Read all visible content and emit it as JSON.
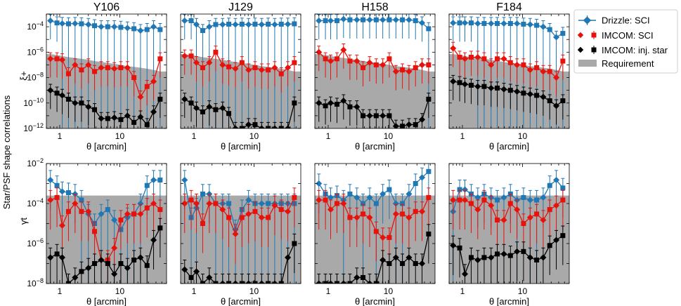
{
  "figure": {
    "ylabel": "Star/PSF shape correlations",
    "row_labels": [
      "ξ+",
      "γt"
    ],
    "xlabel": "θ [arcmin]",
    "colors": {
      "drizzle": "#1f77b4",
      "imcom_sci": "#e8120c",
      "inj_star": "#000000",
      "requirement": "#a9a9a9"
    }
  },
  "legend": {
    "items": [
      {
        "label": "Drizzle: SCI",
        "series": "drizzle"
      },
      {
        "label": "IMCOM: SCI",
        "series": "imcom_sci"
      },
      {
        "label": "IMCOM: inj. star",
        "series": "inj_star"
      },
      {
        "label": "Requirement",
        "series": "requirement"
      }
    ]
  },
  "chart_data": [
    {
      "type": "line",
      "row": "xi_plus",
      "title": "Y106",
      "xlabel": "θ [arcmin]",
      "ylabel": "ξ+",
      "xscale": "log",
      "yscale": "log",
      "xlim": [
        0.6,
        60
      ],
      "ylim": [
        1e-12,
        0.001
      ],
      "x": [
        0.7,
        0.9,
        1.1,
        1.4,
        1.8,
        2.3,
        3.0,
        3.8,
        4.9,
        6.3,
        8.1,
        10.4,
        13.4,
        17.2,
        22.1,
        28.4,
        36.5,
        46.9
      ],
      "xticks": [
        "1",
        "10"
      ],
      "yticks": [
        "10^-12",
        "10^-10",
        "10^-8",
        "10^-6",
        "10^-4"
      ],
      "requirement": [
        7e-07,
        6e-07,
        5e-07,
        4e-07,
        3.5e-07,
        3e-07,
        2.5e-07,
        2e-07,
        1.7e-07,
        1.4e-07,
        1.2e-07,
        1e-07,
        8e-08,
        7e-08,
        6e-08,
        5e-08,
        4e-08,
        3e-08
      ],
      "series": [
        {
          "name": "Drizzle: SCI",
          "key": "drizzle",
          "values": [
            0.0003,
            0.0002,
            0.00018,
            0.00017,
            0.00018,
            0.00017,
            0.00015,
            0.00012,
            0.0001,
            0.0001,
            0.0001,
            9e-05,
            8e-05,
            7e-05,
            5e-05,
            6e-05,
            0.0001,
            6e-05
          ]
        },
        {
          "name": "IMCOM: SCI",
          "key": "imcom_sci",
          "values": [
            3e-07,
            3e-07,
            2.5e-07,
            2e-08,
            1e-07,
            4e-08,
            1e-07,
            3e-08,
            6e-08,
            6e-08,
            5e-08,
            6e-08,
            6e-08,
            1e-08,
            3e-10,
            2e-09,
            5e-09,
            3e-07
          ]
        },
        {
          "name": "IMCOM: inj. star",
          "key": "inj_star",
          "values": [
            1e-09,
            6e-10,
            4e-10,
            2e-10,
            1e-10,
            1e-10,
            5e-11,
            3e-11,
            6e-12,
            6e-12,
            7e-12,
            5e-12,
            1e-11,
            3e-12,
            8e-12,
            2e-12,
            2e-11,
            2e-10
          ]
        }
      ]
    },
    {
      "type": "line",
      "row": "xi_plus",
      "title": "J129",
      "xlabel": "θ [arcmin]",
      "ylabel": "ξ+",
      "xscale": "log",
      "yscale": "log",
      "xlim": [
        0.6,
        60
      ],
      "ylim": [
        1e-12,
        0.001
      ],
      "x": [
        0.7,
        0.9,
        1.1,
        1.4,
        1.8,
        2.3,
        3.0,
        3.8,
        4.9,
        6.3,
        8.1,
        10.4,
        13.4,
        17.2,
        22.1,
        28.4,
        36.5,
        46.9
      ],
      "xticks": [
        "1",
        "10"
      ],
      "yticks": [],
      "requirement": [
        7e-07,
        6e-07,
        5e-07,
        4e-07,
        3.5e-07,
        3e-07,
        2.5e-07,
        2e-07,
        1.7e-07,
        1.4e-07,
        1.2e-07,
        1e-07,
        8e-08,
        7e-08,
        6e-08,
        5e-08,
        4e-08,
        3e-08
      ],
      "series": [
        {
          "name": "Drizzle: SCI",
          "key": "drizzle",
          "values": [
            0.0003,
            0.0003,
            0.00015,
            5e-05,
            0.0001,
            0.00015,
            0.00015,
            0.00016,
            0.00015,
            0.00016,
            0.00015,
            0.00016,
            0.00015,
            0.00016,
            0.00015,
            0.00016,
            0.00016,
            0.00017
          ]
        },
        {
          "name": "IMCOM: SCI",
          "key": "imcom_sci",
          "values": [
            5e-07,
            5e-07,
            1.5e-07,
            6e-08,
            1.5e-07,
            1e-06,
            1e-07,
            7e-08,
            5e-08,
            1.5e-07,
            4e-08,
            6e-08,
            4e-08,
            4e-08,
            6e-08,
            2e-08,
            6e-08,
            1.5e-07
          ]
        },
        {
          "name": "IMCOM: inj. star",
          "key": "inj_star",
          "values": [
            2e-10,
            1e-10,
            4e-11,
            2e-11,
            5e-11,
            3e-11,
            4e-11,
            1.5e-11,
            1e-12,
            1e-12,
            2e-12,
            2e-12,
            1e-12,
            1e-12,
            1e-12,
            1e-12,
            1e-12,
            1e-10
          ]
        }
      ]
    },
    {
      "type": "line",
      "row": "xi_plus",
      "title": "H158",
      "xlabel": "θ [arcmin]",
      "ylabel": "ξ+",
      "xscale": "log",
      "yscale": "log",
      "xlim": [
        0.6,
        60
      ],
      "ylim": [
        1e-12,
        0.001
      ],
      "x": [
        0.7,
        0.9,
        1.1,
        1.4,
        1.8,
        2.3,
        3.0,
        3.8,
        4.9,
        6.3,
        8.1,
        10.4,
        13.4,
        17.2,
        22.1,
        28.4,
        36.5,
        46.9
      ],
      "xticks": [
        "1",
        "10"
      ],
      "yticks": [],
      "requirement": [
        7e-07,
        6e-07,
        5e-07,
        4e-07,
        3.5e-07,
        3e-07,
        2.5e-07,
        2e-07,
        1.7e-07,
        1.4e-07,
        1.2e-07,
        1e-07,
        8e-08,
        7e-08,
        6e-08,
        5e-08,
        4e-08,
        3e-08
      ],
      "series": [
        {
          "name": "Drizzle: SCI",
          "key": "drizzle",
          "values": [
            0.0003,
            0.0003,
            0.0003,
            0.0003,
            0.0004,
            0.00035,
            0.00035,
            0.00035,
            0.00035,
            0.00035,
            0.00035,
            0.00035,
            0.00035,
            0.00035,
            0.00035,
            0.0003,
            0.0002,
            7e-05
          ]
        },
        {
          "name": "IMCOM: SCI",
          "key": "imcom_sci",
          "values": [
            1e-06,
            3e-07,
            2e-07,
            3e-07,
            1.5e-06,
            2e-07,
            2e-07,
            6e-08,
            1.5e-07,
            1e-07,
            1e-07,
            3e-07,
            3e-08,
            4e-08,
            3e-08,
            6e-08,
            1e-07,
            1e-07
          ]
        },
        {
          "name": "IMCOM: inj. star",
          "key": "inj_star",
          "values": [
            1e-10,
            6e-11,
            1e-10,
            8e-11,
            1.5e-10,
            5e-11,
            5e-11,
            1e-11,
            1e-11,
            1e-11,
            1e-11,
            1e-11,
            1.5e-12,
            1.5e-12,
            2e-12,
            2e-12,
            5e-12,
            2e-10
          ]
        }
      ]
    },
    {
      "type": "line",
      "row": "xi_plus",
      "title": "F184",
      "xlabel": "θ [arcmin]",
      "ylabel": "ξ+",
      "xscale": "log",
      "yscale": "log",
      "xlim": [
        0.6,
        60
      ],
      "ylim": [
        1e-12,
        0.001
      ],
      "x": [
        0.7,
        0.9,
        1.1,
        1.4,
        1.8,
        2.3,
        3.0,
        3.8,
        4.9,
        6.3,
        8.1,
        10.4,
        13.4,
        17.2,
        22.1,
        28.4,
        36.5,
        46.9
      ],
      "xticks": [
        "1",
        "10"
      ],
      "yticks": [],
      "requirement": [
        7e-07,
        6e-07,
        5e-07,
        4e-07,
        3.5e-07,
        3e-07,
        2.5e-07,
        2e-07,
        1.7e-07,
        1.4e-07,
        1.2e-07,
        1e-07,
        8e-08,
        7e-08,
        6e-08,
        5e-08,
        4e-08,
        3e-08
      ],
      "series": [
        {
          "name": "Drizzle: SCI",
          "key": "drizzle",
          "values": [
            0.0002,
            0.0002,
            0.0002,
            0.0002,
            0.00018,
            0.00018,
            0.00018,
            0.00018,
            0.00018,
            0.00018,
            0.00018,
            0.00016,
            0.00015,
            0.00013,
            0.0001,
            6e-05,
            1.5e-05,
            3e-05
          ]
        },
        {
          "name": "IMCOM: SCI",
          "key": "imcom_sci",
          "values": [
            2e-06,
            4e-07,
            3e-07,
            4e-07,
            4e-07,
            3e-07,
            1e-07,
            3e-07,
            3e-07,
            1.5e-07,
            1e-07,
            1e-07,
            4e-08,
            6e-08,
            3e-08,
            3e-08,
            1e-08,
            2e-07
          ]
        },
        {
          "name": "IMCOM: inj. star",
          "key": "inj_star",
          "values": [
            5e-09,
            4e-09,
            3e-09,
            2.5e-09,
            2e-09,
            2e-09,
            1.5e-09,
            1.5e-09,
            1.2e-09,
            1e-09,
            8e-10,
            6e-10,
            5e-10,
            4e-10,
            3e-10,
            1.5e-10,
            6e-11,
            1.5e-10
          ]
        }
      ]
    },
    {
      "type": "line",
      "row": "gamma_t",
      "title": "",
      "xlabel": "θ [arcmin]",
      "ylabel": "γt",
      "xscale": "log",
      "yscale": "log",
      "xlim": [
        0.6,
        60
      ],
      "ylim": [
        1e-08,
        0.01
      ],
      "x": [
        0.7,
        0.9,
        1.1,
        1.4,
        1.8,
        2.3,
        3.0,
        3.8,
        4.9,
        6.3,
        8.1,
        10.4,
        13.4,
        17.2,
        22.1,
        28.4,
        36.5,
        46.9
      ],
      "xticks": [
        "1",
        "10"
      ],
      "yticks": [
        "10^-8",
        "10^-6",
        "10^-4",
        "10^-2"
      ],
      "requirement": [
        0.00025,
        0.00025,
        0.00025,
        0.00025,
        0.00025,
        0.00025,
        0.00025,
        0.00025,
        0.00025,
        0.00025,
        0.00025,
        0.00025,
        0.00025,
        0.00025,
        0.00025,
        0.00025,
        0.00025,
        0.00025
      ],
      "series": [
        {
          "name": "Drizzle: SCI",
          "key": "drizzle",
          "values": [
            0.0015,
            0.0008,
            0.0004,
            0.00035,
            0.0003,
            0.00015,
            3e-05,
            1e-05,
            3e-05,
            5e-05,
            1.5e-05,
            5e-06,
            2e-05,
            3e-05,
            0.0001,
            0.0008,
            0.0015,
            0.0015
          ]
        },
        {
          "name": "IMCOM: SCI",
          "key": "imcom_sci",
          "values": [
            0.00015,
            0.0002,
            8e-06,
            4e-05,
            0.0001,
            4e-05,
            4e-05,
            4e-06,
            1.5e-07,
            1.5e-07,
            6e-07,
            1.5e-05,
            3e-05,
            3e-05,
            3e-05,
            6e-05,
            0.0001,
            5e-05
          ]
        },
        {
          "name": "IMCOM: inj. star",
          "key": "inj_star",
          "values": [
            2e-07,
            3e-07,
            2e-07,
            1e-08,
            2e-08,
            4e-08,
            6e-08,
            1e-07,
            1.5e-07,
            1e-07,
            3e-08,
            1e-07,
            6e-08,
            1.5e-07,
            2e-07,
            8e-08,
            1.5e-06,
            6e-06
          ]
        }
      ]
    },
    {
      "type": "line",
      "row": "gamma_t",
      "title": "",
      "xlabel": "θ [arcmin]",
      "ylabel": "γt",
      "xscale": "log",
      "yscale": "log",
      "xlim": [
        0.6,
        60
      ],
      "ylim": [
        1e-08,
        0.01
      ],
      "x": [
        0.7,
        0.9,
        1.1,
        1.4,
        1.8,
        2.3,
        3.0,
        3.8,
        4.9,
        6.3,
        8.1,
        10.4,
        13.4,
        17.2,
        22.1,
        28.4,
        36.5,
        46.9
      ],
      "xticks": [
        "1",
        "10"
      ],
      "yticks": [],
      "requirement": [
        0.00025,
        0.00025,
        0.00025,
        0.00025,
        0.00025,
        0.00025,
        0.00025,
        0.00025,
        0.00025,
        0.00025,
        0.00025,
        0.00025,
        0.00025,
        0.00025,
        0.00025,
        0.00025,
        0.00025,
        0.00025
      ],
      "series": [
        {
          "name": "Drizzle: SCI",
          "key": "drizzle",
          "values": [
            0.0015,
            2e-05,
            6e-05,
            0.0003,
            0.0003,
            0.0001,
            0.0001,
            0.0001,
            5e-06,
            5e-05,
            0.00015,
            0.0001,
            0.0001,
            0.0001,
            0.0001,
            0.0001,
            0.0001,
            0.0001
          ]
        },
        {
          "name": "IMCOM: SCI",
          "key": "imcom_sci",
          "values": [
            0.0001,
            0.00015,
            0.0001,
            1e-05,
            0.0001,
            0.0001,
            5e-05,
            2e-05,
            3e-06,
            2e-05,
            3e-05,
            4e-05,
            2e-05,
            2e-05,
            8e-05,
            5e-05,
            4e-05,
            0.0002
          ]
        },
        {
          "name": "IMCOM: inj. star",
          "key": "inj_star",
          "values": [
            5e-08,
            2e-08,
            4e-08,
            1e-08,
            2e-08,
            1e-08,
            1e-08,
            1e-08,
            1e-08,
            1e-08,
            1e-08,
            1e-08,
            1e-08,
            1e-08,
            1e-08,
            1e-08,
            2e-07,
            1e-06
          ]
        }
      ]
    },
    {
      "type": "line",
      "row": "gamma_t",
      "title": "",
      "xlabel": "θ [arcmin]",
      "ylabel": "γt",
      "xscale": "log",
      "yscale": "log",
      "xlim": [
        0.6,
        60
      ],
      "ylim": [
        1e-08,
        0.01
      ],
      "x": [
        0.7,
        0.9,
        1.1,
        1.4,
        1.8,
        2.3,
        3.0,
        3.8,
        4.9,
        6.3,
        8.1,
        10.4,
        13.4,
        17.2,
        22.1,
        28.4,
        36.5,
        46.9
      ],
      "xticks": [
        "1",
        "10"
      ],
      "yticks": [],
      "requirement": [
        0.00025,
        0.00025,
        0.00025,
        0.00025,
        0.00025,
        0.00025,
        0.00025,
        0.00025,
        0.00025,
        0.00025,
        0.00025,
        0.00025,
        0.00025,
        0.00025,
        0.00025,
        0.00025,
        0.00025,
        0.00025
      ],
      "series": [
        {
          "name": "Drizzle: SCI",
          "key": "drizzle",
          "values": [
            0.001,
            0.0003,
            0.0002,
            0.00025,
            0.00015,
            0.0003,
            0.0002,
            0.0001,
            0.0002,
            0.0001,
            0.0003,
            0.0005,
            0.0001,
            0.0001,
            0.0003,
            0.001,
            0.002,
            0.004
          ]
        },
        {
          "name": "IMCOM: SCI",
          "key": "imcom_sci",
          "values": [
            0.00015,
            0.00015,
            5e-05,
            0.0001,
            0.0001,
            2e-05,
            2e-05,
            3e-05,
            2e-05,
            4e-06,
            2e-06,
            2e-06,
            3e-05,
            3e-05,
            2e-05,
            4e-05,
            4e-05,
            0.0002
          ]
        },
        {
          "name": "IMCOM: inj. star",
          "key": "inj_star",
          "values": [
            1e-08,
            1e-08,
            1e-08,
            1e-08,
            1e-08,
            1e-08,
            2e-08,
            2e-08,
            1e-08,
            1e-08,
            1.5e-07,
            1e-07,
            2e-07,
            1e-07,
            2e-07,
            1e-07,
            1e-07,
            3e-06
          ]
        }
      ]
    },
    {
      "type": "line",
      "row": "gamma_t",
      "title": "",
      "xlabel": "θ [arcmin]",
      "ylabel": "γt",
      "xscale": "log",
      "yscale": "log",
      "xlim": [
        0.6,
        60
      ],
      "ylim": [
        1e-08,
        0.01
      ],
      "x": [
        0.7,
        0.9,
        1.1,
        1.4,
        1.8,
        2.3,
        3.0,
        3.8,
        4.9,
        6.3,
        8.1,
        10.4,
        13.4,
        17.2,
        22.1,
        28.4,
        36.5,
        46.9
      ],
      "xticks": [
        "1",
        "10"
      ],
      "yticks": [],
      "requirement": [
        0.00025,
        0.00025,
        0.00025,
        0.00025,
        0.00025,
        0.00025,
        0.00025,
        0.00025,
        0.00025,
        0.00025,
        0.00025,
        0.00025,
        0.00025,
        0.00025,
        0.00025,
        0.00025,
        0.00025,
        0.00025
      ],
      "series": [
        {
          "name": "Drizzle: SCI",
          "key": "drizzle",
          "values": [
            4e-05,
            0.0005,
            0.0005,
            0.0003,
            0.0002,
            0.0003,
            0.0002,
            0.00015,
            0.0002,
            0.0003,
            0.00015,
            0.0002,
            0.00015,
            0.00015,
            0.0002,
            0.0008,
            0.0015,
            0.0006
          ]
        },
        {
          "name": "IMCOM: SCI",
          "key": "imcom_sci",
          "values": [
            0.00015,
            0.00015,
            0.00015,
            0.0001,
            5e-05,
            0.00015,
            8e-05,
            1.5e-05,
            1.5e-05,
            0.0001,
            5e-05,
            1e-05,
            2e-05,
            3e-05,
            1.5e-05,
            5e-05,
            8e-05,
            0.00015
          ]
        },
        {
          "name": "IMCOM: inj. star",
          "key": "inj_star",
          "values": [
            8e-07,
            6e-07,
            3e-08,
            2e-07,
            1.5e-07,
            2e-07,
            2e-07,
            3e-07,
            3e-07,
            2.5e-07,
            4e-07,
            4e-07,
            2e-07,
            1.5e-07,
            2e-07,
            8e-07,
            1.5e-06,
            2.5e-06
          ]
        }
      ]
    }
  ]
}
